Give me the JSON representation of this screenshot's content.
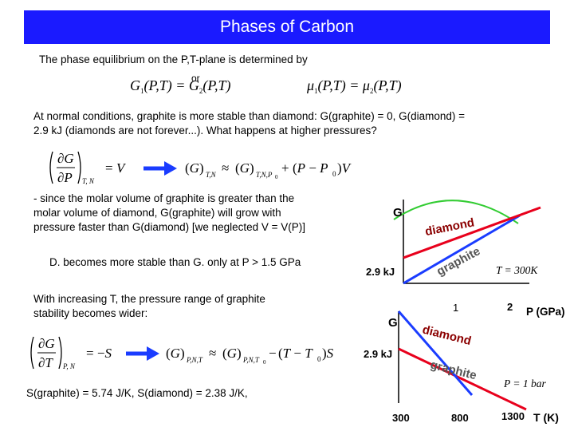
{
  "title": "Phases of Carbon",
  "intro_line": "The phase equilibrium on the P,T-plane is determined by",
  "or_word": "or",
  "equilibrium_eq_left": "G1(P,T) = G2(P,T)",
  "equilibrium_eq_right": "μ1(P,T) = μ2(P,T)",
  "para_normal_line1": "At normal conditions, graphite is more stable than diamond: G(graphite) = 0, G(diamond) =",
  "para_normal_line2": "2.9 kJ (diamonds are not forever...).   What happens at higher pressures?",
  "pressure_eq": "(∂G/∂P)_T,N = V   →   (G)_T,N ≈ (G)_T,N,P0 + (P − P0)V",
  "bullet_lines": [
    "- since the molar volume of graphite is greater than the",
    "molar volume of diamond, G(graphite) will grow with",
    "pressure faster than G(diamond) [we neglected V = V(P)]"
  ],
  "d_stable_line": "D. becomes more stable than G. only at P > 1.5 GPa",
  "temp_lines": [
    "With increasing T, the pressure range of graphite",
    "stability becomes wider:"
  ],
  "temperature_eq": "(∂G/∂T)_P,N = −S   →   (G)_P,N,T ≈ (G)_P,N,T0 − (T − T0)S",
  "entropy_line": "S(graphite) = 5.74 J/K, S(diamond) = 2.38 J/K,",
  "plot_pressure": {
    "g_axis": "G",
    "g_value": "2.9 kJ",
    "diamond_label": "diamond",
    "graphite_label": "graphite",
    "condition": "T = 300K",
    "x_ticks": [
      "1",
      "2"
    ],
    "x_axis": "P (GPa)"
  },
  "plot_temperature": {
    "g_axis": "G",
    "g_value": "2.9 kJ",
    "diamond_label": "diamond",
    "graphite_label": "graphite",
    "condition": "P = 1 bar",
    "x_ticks": [
      "300",
      "800",
      "1300"
    ],
    "x_axis": "T (K)"
  },
  "colors": {
    "title_bg": "#1a1aff",
    "diamond": "#e8001c",
    "graphite": "#1a3cff",
    "arc": "#33cc33",
    "arrow": "#1a3cff",
    "diamond_label": "#8b0000",
    "graphite_label": "#555555"
  }
}
